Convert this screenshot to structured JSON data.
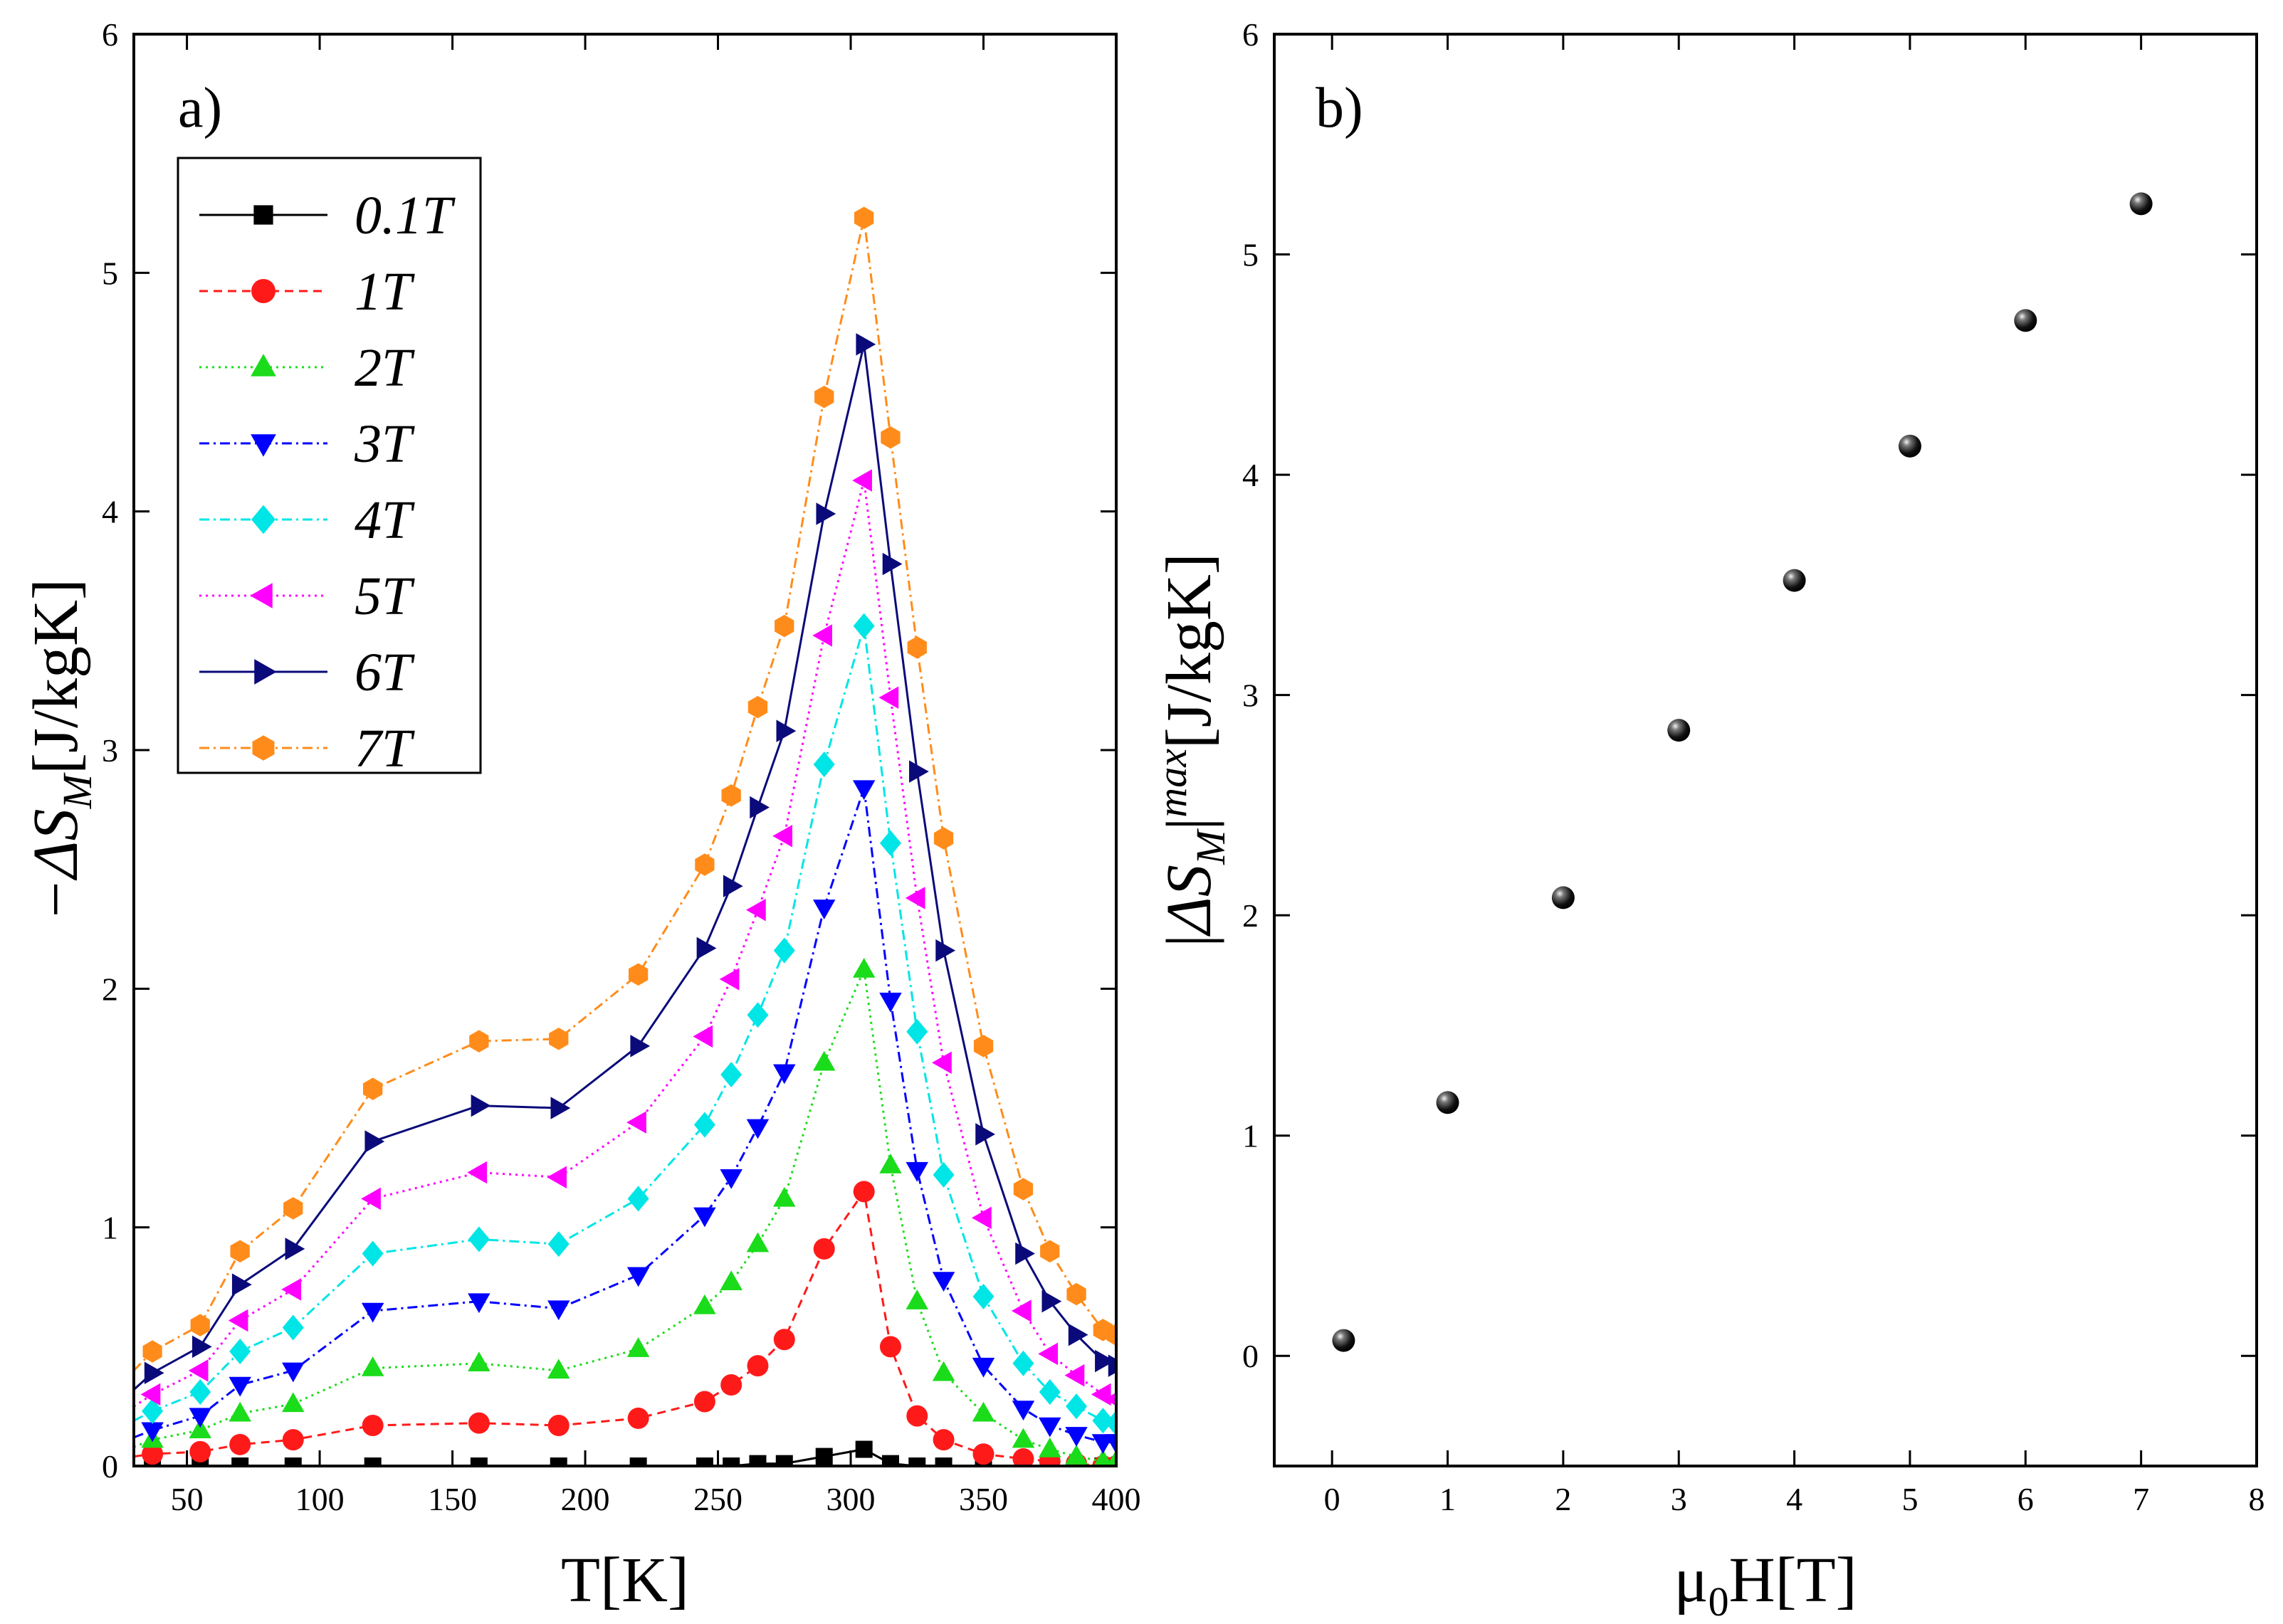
{
  "chart_data": [
    {
      "panel": "a)",
      "type": "line",
      "xlabel": "T[K]",
      "ylabel": "−ΔS_M[J/kgK]",
      "ylabel_parts": {
        "prefix": "−ΔS",
        "sub": "M",
        "suffix": "[J/kgK]"
      },
      "xlim": [
        30,
        400
      ],
      "ylim": [
        0,
        6
      ],
      "xticks": [
        50,
        100,
        150,
        200,
        250,
        300,
        350,
        400
      ],
      "yticks": [
        0,
        1,
        2,
        3,
        4,
        5,
        6
      ],
      "legend_position": "top-left",
      "x": [
        30,
        37,
        55,
        70,
        90,
        120,
        160,
        190,
        220,
        245,
        255,
        265,
        275,
        290,
        305,
        315,
        325,
        335,
        350,
        365,
        375,
        385,
        395,
        400
      ],
      "series": [
        {
          "name": "0.1T",
          "color": "#000000",
          "dash": "",
          "marker": "square",
          "values": [
            0.0,
            0.0,
            0.0,
            0.0,
            0.0,
            0.0,
            0.0,
            0.0,
            0.0,
            0.0,
            0.0,
            0.01,
            0.01,
            0.04,
            0.07,
            0.01,
            0.0,
            0.0,
            0.0,
            0.0,
            0.0,
            0.0,
            0.0,
            0.0
          ]
        },
        {
          "name": "1T",
          "color": "#ff1a1a",
          "dash": "12,8",
          "marker": "circle",
          "values": [
            0.04,
            0.05,
            0.06,
            0.09,
            0.11,
            0.17,
            0.18,
            0.17,
            0.2,
            0.27,
            0.34,
            0.42,
            0.53,
            0.91,
            1.15,
            0.5,
            0.21,
            0.11,
            0.05,
            0.03,
            0.02,
            0.01,
            0.0,
            0.0
          ]
        },
        {
          "name": "2T",
          "color": "#1adc1a",
          "dash": "3,6",
          "marker": "triangle-up",
          "values": [
            0.08,
            0.11,
            0.15,
            0.22,
            0.26,
            0.41,
            0.43,
            0.4,
            0.49,
            0.67,
            0.77,
            0.93,
            1.12,
            1.69,
            2.08,
            1.26,
            0.69,
            0.39,
            0.22,
            0.11,
            0.07,
            0.04,
            0.02,
            0.02
          ]
        },
        {
          "name": "3T",
          "color": "#0000ff",
          "dash": "14,6,3,6",
          "marker": "triangle-down",
          "values": [
            0.12,
            0.15,
            0.21,
            0.34,
            0.4,
            0.65,
            0.69,
            0.66,
            0.8,
            1.05,
            1.21,
            1.42,
            1.65,
            2.34,
            2.84,
            1.95,
            1.24,
            0.78,
            0.42,
            0.24,
            0.17,
            0.13,
            0.1,
            0.1
          ]
        },
        {
          "name": "4T",
          "color": "#00e5e5",
          "dash": "14,6,3,6",
          "marker": "diamond",
          "values": [
            0.19,
            0.23,
            0.31,
            0.48,
            0.58,
            0.89,
            0.95,
            0.93,
            1.12,
            1.43,
            1.64,
            1.89,
            2.16,
            2.94,
            3.52,
            2.61,
            1.82,
            1.22,
            0.71,
            0.43,
            0.31,
            0.25,
            0.19,
            0.18
          ]
        },
        {
          "name": "5T",
          "color": "#ff00ff",
          "dash": "3,6",
          "marker": "triangle-left",
          "values": [
            0.25,
            0.3,
            0.4,
            0.61,
            0.74,
            1.12,
            1.23,
            1.21,
            1.44,
            1.8,
            2.04,
            2.33,
            2.64,
            3.48,
            4.13,
            3.22,
            2.38,
            1.69,
            1.04,
            0.65,
            0.47,
            0.38,
            0.3,
            0.28
          ]
        },
        {
          "name": "6T",
          "color": "#0a0a7a",
          "dash": "",
          "marker": "triangle-right",
          "values": [
            0.32,
            0.39,
            0.5,
            0.76,
            0.91,
            1.36,
            1.51,
            1.5,
            1.76,
            2.17,
            2.43,
            2.76,
            3.08,
            3.99,
            4.7,
            3.78,
            2.91,
            2.16,
            1.39,
            0.89,
            0.69,
            0.55,
            0.44,
            0.42
          ]
        },
        {
          "name": "7T",
          "color": "#ff8c1a",
          "dash": "14,6,3,6",
          "marker": "hexagon",
          "values": [
            0.4,
            0.48,
            0.59,
            0.9,
            1.08,
            1.58,
            1.78,
            1.79,
            2.06,
            2.52,
            2.81,
            3.18,
            3.52,
            4.48,
            5.23,
            4.31,
            3.43,
            2.63,
            1.76,
            1.16,
            0.9,
            0.72,
            0.57,
            0.55
          ]
        }
      ]
    },
    {
      "panel": "b)",
      "type": "scatter",
      "xlabel": "μ0H[T]",
      "xlabel_parts": {
        "prefix": "μ",
        "sub": "0",
        "suffix": "H[T]"
      },
      "ylabel": "|ΔS_M|^max[J/kgK]",
      "ylabel_parts": {
        "bar": "|",
        "delta": "ΔS",
        "sub": "M",
        "sup": "max",
        "suffix": "[J/kgK]"
      },
      "xlim": [
        -0.5,
        8
      ],
      "ylim": [
        -0.5,
        6
      ],
      "xticks": [
        0,
        1,
        2,
        3,
        4,
        5,
        6,
        7,
        8
      ],
      "yticks": [
        0,
        1,
        2,
        3,
        4,
        5,
        6
      ],
      "marker": "sphere",
      "color": "#000000",
      "x": [
        0.1,
        1,
        2,
        3,
        4,
        5,
        6,
        7
      ],
      "y": [
        0.07,
        1.15,
        2.08,
        2.84,
        3.52,
        4.13,
        4.7,
        5.23
      ]
    }
  ]
}
